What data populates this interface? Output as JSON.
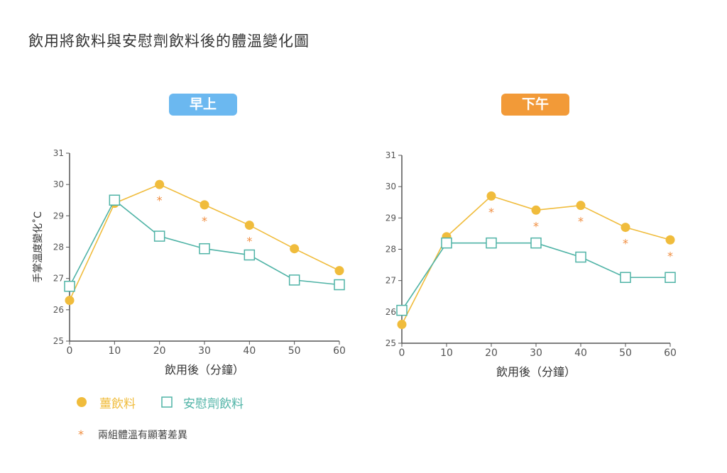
{
  "title": "飲用將飲料與安慰劑飲料後的體溫變化圖",
  "legend": {
    "ginger_label": "薑飲料",
    "placebo_label": "安慰劑飲料",
    "note_symbol": "*",
    "note_text": "兩組體溫有顯著差異"
  },
  "colors": {
    "ginger": "#F0BC3C",
    "placebo": "#4FB3A6",
    "star": "#F08C3C",
    "morning_badge": "#6BB8F0",
    "afternoon_badge": "#F29A38",
    "axis": "#555555"
  },
  "chart_data": [
    {
      "type": "line",
      "panel_label": "早上",
      "x": [
        0,
        10,
        20,
        30,
        40,
        50,
        60
      ],
      "xlabel": "飲用後（分鐘）",
      "ylabel": "手掌溫度變化˚C",
      "ylim": [
        25,
        31
      ],
      "xticks": [
        0,
        10,
        20,
        30,
        40,
        50,
        60
      ],
      "yticks": [
        25,
        26,
        27,
        28,
        29,
        30,
        31
      ],
      "series": [
        {
          "name": "薑飲料",
          "marker": "circle",
          "values": [
            26.3,
            29.4,
            30.0,
            29.35,
            28.7,
            27.95,
            27.25
          ]
        },
        {
          "name": "安慰劑飲料",
          "marker": "square",
          "values": [
            26.75,
            29.5,
            28.35,
            27.95,
            27.75,
            26.95,
            26.8
          ]
        }
      ],
      "significant_x": [
        20,
        30,
        40
      ]
    },
    {
      "type": "line",
      "panel_label": "下午",
      "x": [
        0,
        10,
        20,
        30,
        40,
        50,
        60
      ],
      "xlabel": "飲用後（分鐘）",
      "ylabel": "",
      "ylim": [
        25,
        31
      ],
      "xticks": [
        0,
        10,
        20,
        30,
        40,
        50,
        60
      ],
      "yticks": [
        25,
        26,
        27,
        28,
        29,
        30,
        31
      ],
      "series": [
        {
          "name": "薑飲料",
          "marker": "circle",
          "values": [
            25.6,
            28.4,
            29.7,
            29.25,
            29.4,
            28.7,
            28.3
          ]
        },
        {
          "name": "安慰劑飲料",
          "marker": "square",
          "values": [
            26.05,
            28.2,
            28.2,
            28.2,
            27.75,
            27.1,
            27.1
          ]
        }
      ],
      "significant_x": [
        20,
        30,
        40,
        50,
        60
      ]
    }
  ]
}
